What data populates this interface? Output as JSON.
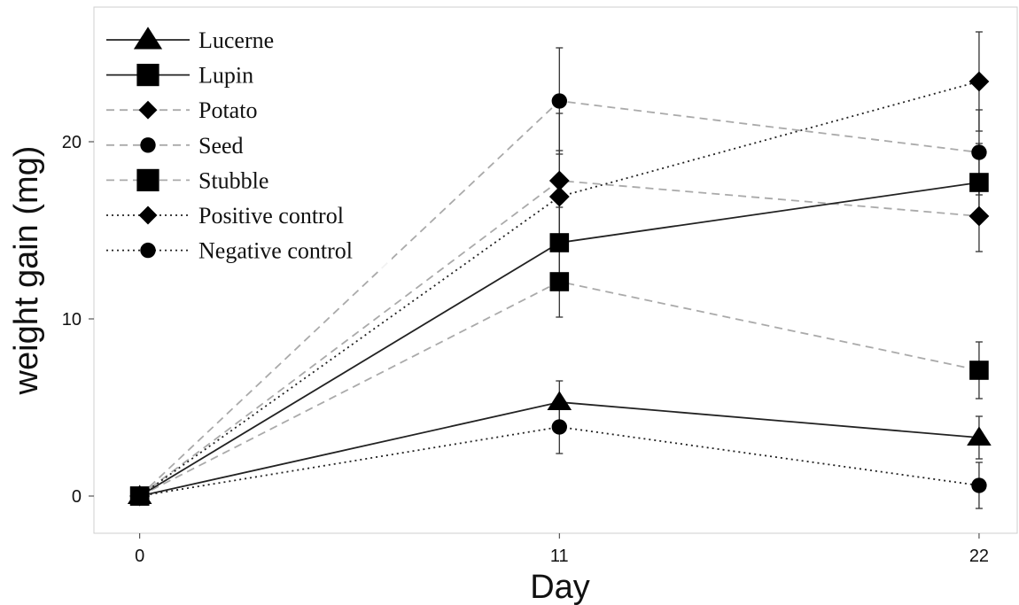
{
  "chart_data": {
    "type": "line",
    "xlabel": "Day",
    "ylabel": "weight gain (mg)",
    "x": [
      0,
      11,
      22
    ],
    "x_tick_labels": [
      "0",
      "11",
      "22"
    ],
    "y_ticks": [
      0,
      10,
      20
    ],
    "y_tick_labels": [
      "0",
      "10",
      "20"
    ],
    "xlim": [
      -1.2,
      23.0
    ],
    "ylim": [
      -2.1,
      27.6
    ],
    "grid": false,
    "legend_position": "top-left",
    "series": [
      {
        "name": "Lucerne",
        "marker": "triangle",
        "line": "solid",
        "color": "#222222",
        "values": [
          0,
          5.3,
          3.3
        ],
        "errors": [
          0,
          1.2,
          1.2
        ]
      },
      {
        "name": "Lupin",
        "marker": "square",
        "line": "solid",
        "color": "#222222",
        "values": [
          0,
          14.3,
          17.7
        ],
        "errors": [
          0,
          2.0,
          2.2
        ]
      },
      {
        "name": "Potato",
        "marker": "diamond",
        "line": "dashed",
        "color": "#aaaaaa",
        "values": [
          0,
          17.8,
          15.8
        ],
        "errors": [
          0,
          3.8,
          2.0
        ]
      },
      {
        "name": "Seed",
        "marker": "circle",
        "line": "dashed",
        "color": "#aaaaaa",
        "values": [
          0,
          22.3,
          19.4
        ],
        "errors": [
          0,
          3.0,
          2.4
        ]
      },
      {
        "name": "Stubble",
        "marker": "square",
        "line": "dashed",
        "color": "#aaaaaa",
        "values": [
          0,
          12.1,
          7.1
        ],
        "errors": [
          0,
          2.0,
          1.6
        ]
      },
      {
        "name": "Positive control",
        "marker": "diamond",
        "line": "dotted",
        "color": "#222222",
        "values": [
          0,
          16.9,
          23.4
        ],
        "errors": [
          0,
          2.6,
          2.8
        ]
      },
      {
        "name": "Negative control",
        "marker": "circle",
        "line": "dotted",
        "color": "#222222",
        "values": [
          0,
          3.9,
          0.6
        ],
        "errors": [
          0,
          1.5,
          1.3
        ]
      }
    ]
  }
}
